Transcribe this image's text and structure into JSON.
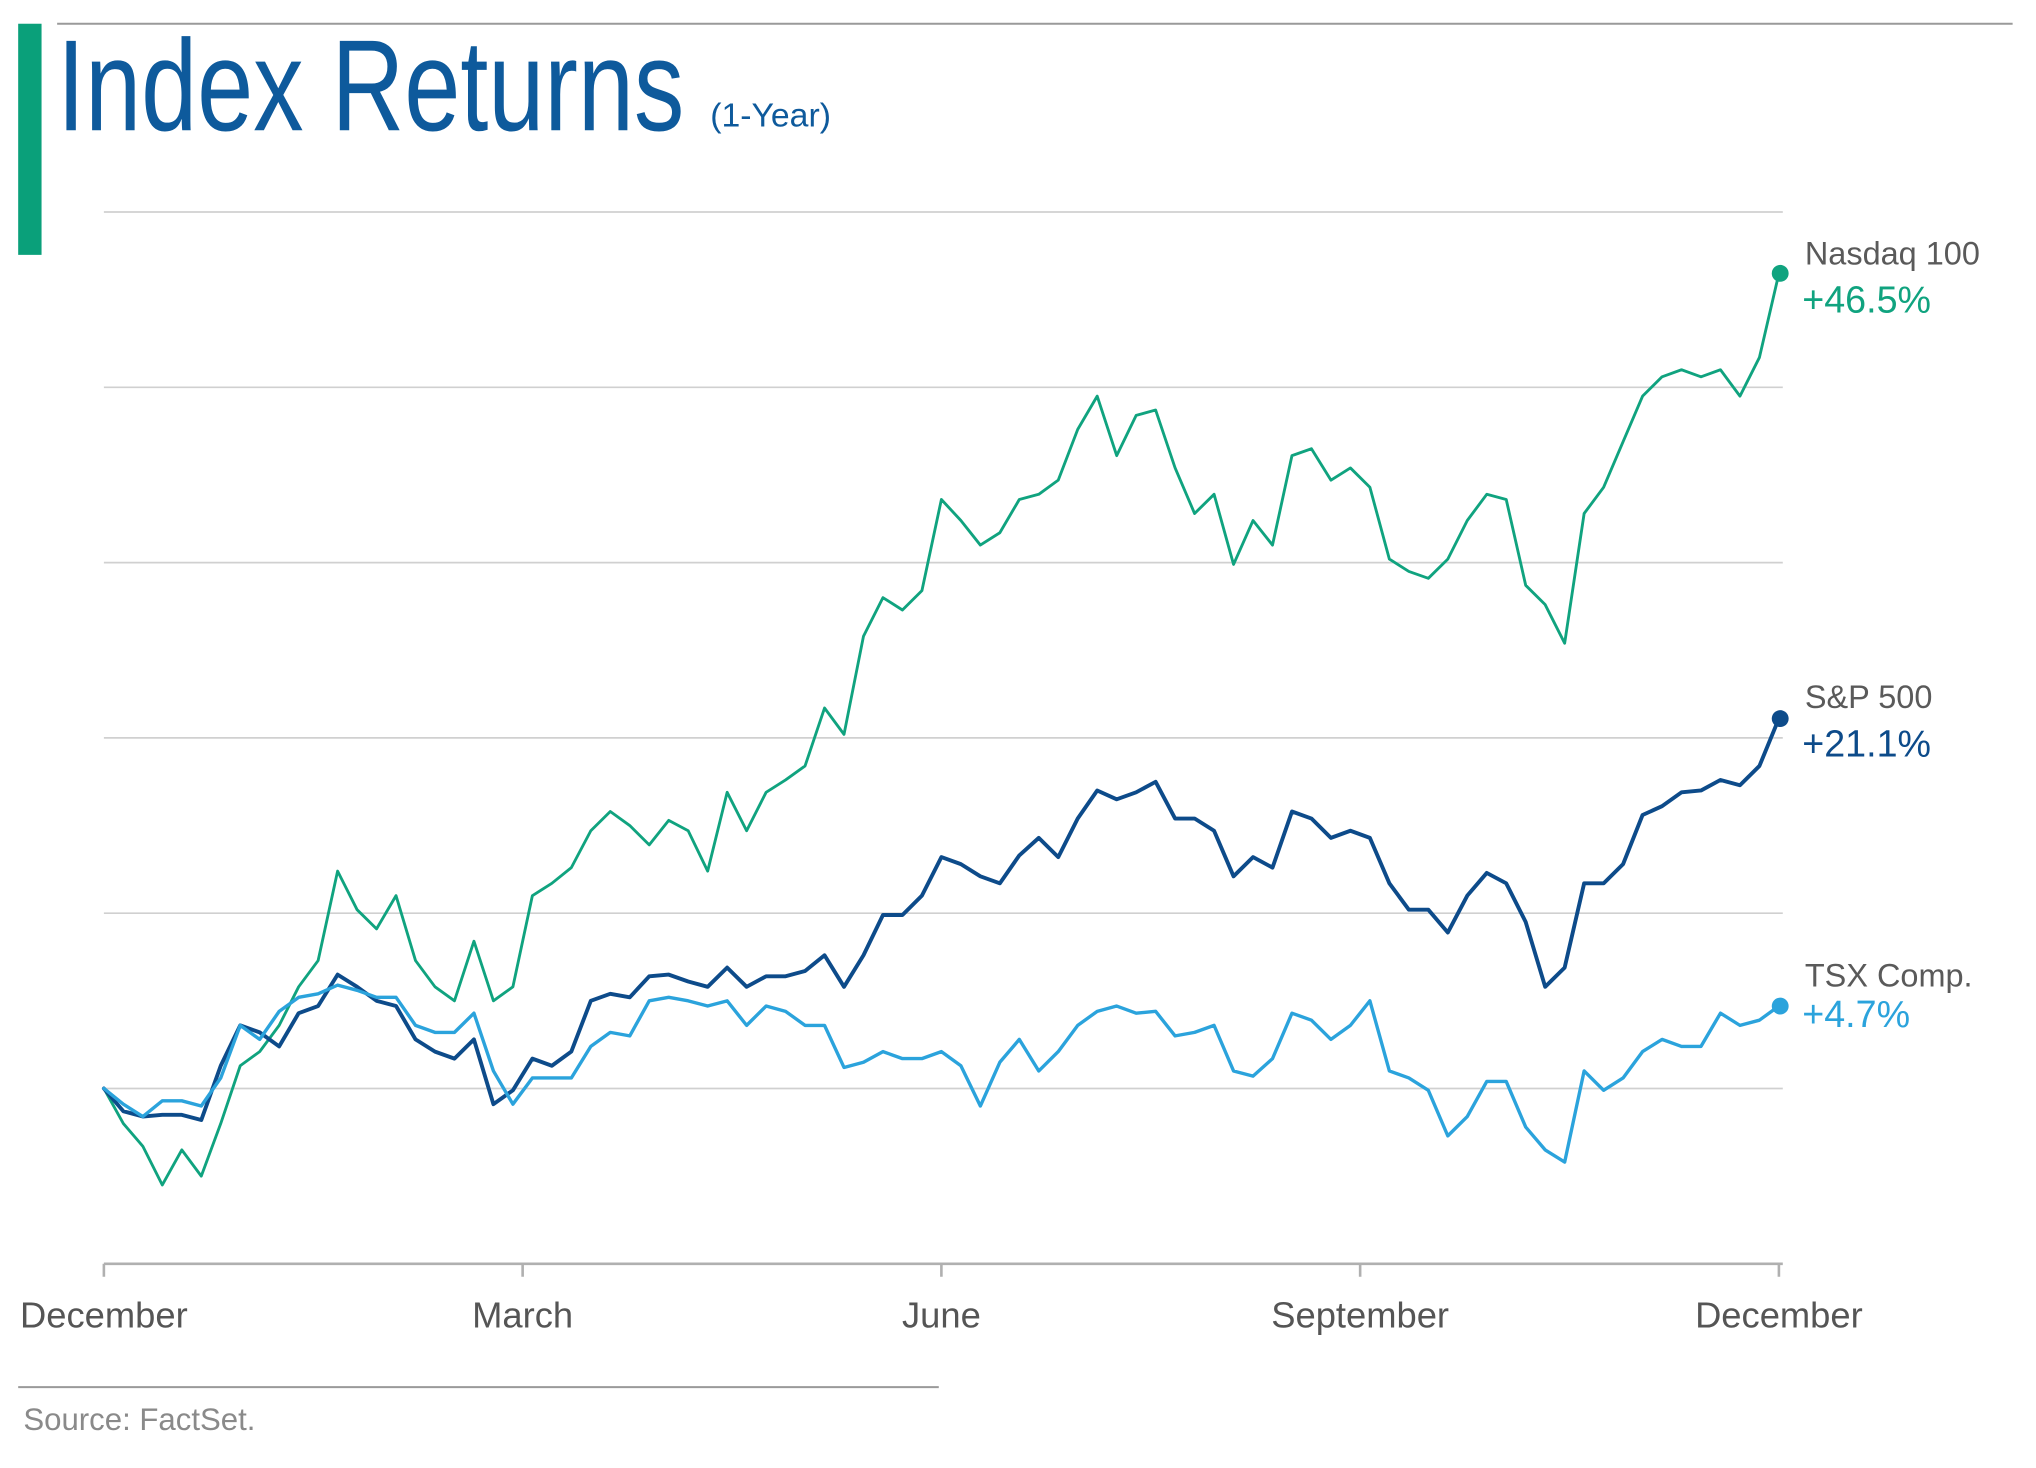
{
  "colors": {
    "accent_bar": "#0aa07a",
    "title": "#0e5a9c",
    "grid": "#d0d0d0",
    "axis": "#b0b0b0",
    "rule": "#9a9a9a",
    "text": "#555555"
  },
  "chart_data": {
    "type": "line",
    "title": "Index Returns",
    "subtitle": "(1-Year)",
    "xlabel": "",
    "ylabel": "",
    "x_ticks": [
      "December",
      "March",
      "June",
      "September",
      "December"
    ],
    "ylim": [
      -10,
      50
    ],
    "y_gridlines": [
      0,
      10,
      20,
      30,
      40,
      50
    ],
    "grid": true,
    "legend": "right",
    "series": [
      {
        "name": "Nasdaq 100",
        "end_label": "+46.5%",
        "color": "#10a37f",
        "values": [
          0.0,
          -2.0,
          -3.3,
          -5.5,
          -3.5,
          -5.0,
          -2.0,
          1.3,
          2.1,
          3.6,
          5.8,
          7.3,
          12.4,
          10.2,
          9.1,
          11.0,
          7.3,
          5.8,
          5.0,
          8.4,
          5.0,
          5.8,
          11.0,
          11.7,
          12.6,
          14.7,
          15.8,
          15.0,
          13.9,
          15.3,
          14.7,
          12.4,
          16.9,
          14.7,
          16.9,
          17.6,
          18.4,
          21.7,
          20.2,
          25.8,
          28.0,
          27.3,
          28.4,
          33.6,
          32.4,
          31.0,
          31.7,
          33.6,
          33.9,
          34.7,
          37.6,
          39.5,
          36.1,
          38.4,
          38.7,
          35.4,
          32.8,
          33.9,
          29.9,
          32.4,
          31.0,
          36.1,
          36.5,
          34.7,
          35.4,
          34.3,
          30.2,
          29.5,
          29.1,
          30.2,
          32.4,
          33.9,
          33.6,
          28.7,
          27.6,
          25.4,
          32.8,
          34.3,
          36.9,
          39.5,
          40.6,
          41.0,
          40.6,
          41.0,
          39.5,
          41.7,
          46.5
        ]
      },
      {
        "name": "S&P 500",
        "end_label": "+21.1%",
        "color": "#0d4b8a",
        "values": [
          0.0,
          -1.3,
          -1.6,
          -1.5,
          -1.5,
          -1.8,
          1.3,
          3.6,
          3.2,
          2.4,
          4.3,
          4.7,
          6.5,
          5.8,
          5.0,
          4.7,
          2.8,
          2.1,
          1.7,
          2.8,
          -0.9,
          -0.1,
          1.7,
          1.3,
          2.1,
          5.0,
          5.4,
          5.2,
          6.4,
          6.5,
          6.1,
          5.8,
          6.9,
          5.8,
          6.4,
          6.4,
          6.7,
          7.6,
          5.8,
          7.6,
          9.9,
          9.9,
          11.0,
          13.2,
          12.8,
          12.1,
          11.7,
          13.3,
          14.3,
          13.2,
          15.4,
          17.0,
          16.5,
          16.9,
          17.5,
          15.4,
          15.4,
          14.7,
          12.1,
          13.2,
          12.6,
          15.8,
          15.4,
          14.3,
          14.7,
          14.3,
          11.7,
          10.2,
          10.2,
          8.9,
          11.0,
          12.3,
          11.7,
          9.5,
          5.8,
          6.9,
          11.7,
          11.7,
          12.8,
          15.6,
          16.1,
          16.9,
          17.0,
          17.6,
          17.3,
          18.4,
          21.1
        ]
      },
      {
        "name": "TSX Comp.",
        "end_label": "+4.7%",
        "color": "#2ba3dc",
        "values": [
          0.0,
          -0.9,
          -1.6,
          -0.7,
          -0.7,
          -1.0,
          0.6,
          3.6,
          2.8,
          4.4,
          5.2,
          5.4,
          5.9,
          5.6,
          5.2,
          5.2,
          3.6,
          3.2,
          3.2,
          4.3,
          1.0,
          -0.9,
          0.6,
          0.6,
          0.6,
          2.4,
          3.2,
          3.0,
          5.0,
          5.2,
          5.0,
          4.7,
          5.0,
          3.6,
          4.7,
          4.4,
          3.6,
          3.6,
          1.2,
          1.5,
          2.1,
          1.7,
          1.7,
          2.1,
          1.3,
          -1.0,
          1.5,
          2.8,
          1.0,
          2.1,
          3.6,
          4.4,
          4.7,
          4.3,
          4.4,
          3.0,
          3.2,
          3.6,
          1.0,
          0.7,
          1.7,
          4.3,
          3.9,
          2.8,
          3.6,
          5.0,
          1.0,
          0.6,
          -0.1,
          -2.7,
          -1.6,
          0.4,
          0.4,
          -2.2,
          -3.5,
          -4.2,
          1.0,
          -0.1,
          0.6,
          2.1,
          2.8,
          2.4,
          2.4,
          4.3,
          3.6,
          3.9,
          4.7
        ]
      }
    ]
  },
  "footer": {
    "source": "Source: FactSet."
  }
}
